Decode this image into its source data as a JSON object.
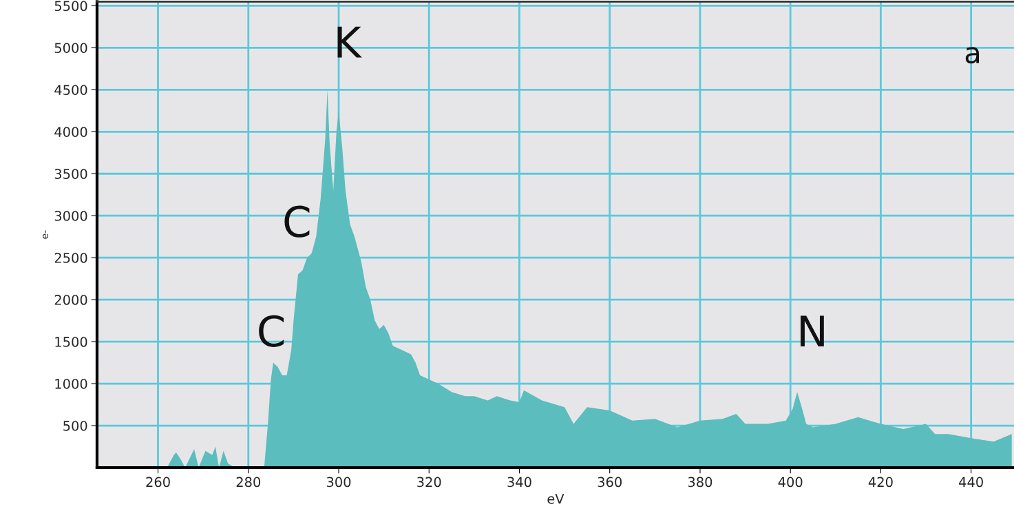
{
  "chart_data": {
    "type": "area",
    "xlabel": "eV",
    "ylabel": "e-",
    "x": [
      262,
      263.5,
      264,
      265,
      266,
      268,
      269,
      270.5,
      272,
      272.7,
      273.5,
      274.5,
      275.5,
      277,
      283.5,
      284.3,
      285,
      285.5,
      286.5,
      287.5,
      288.5,
      289.5,
      290,
      291,
      292,
      293,
      294,
      295,
      296,
      297,
      297.5,
      298,
      298.8,
      299.5,
      300,
      300.8,
      301.5,
      302.5,
      303.5,
      305,
      306,
      307,
      308,
      309,
      310,
      311,
      312,
      314,
      316,
      317,
      318,
      320,
      322,
      325,
      328,
      330,
      333,
      335,
      338,
      340,
      341,
      345,
      350,
      352,
      355,
      360,
      365,
      370,
      375,
      380,
      385,
      388,
      390,
      395,
      399,
      400.5,
      401.5,
      402.5,
      403.5,
      405,
      410,
      415,
      420,
      425,
      430,
      432,
      435,
      440,
      445,
      449
    ],
    "series": [
      {
        "color": "#5bbdbd",
        "values": [
          0,
          150,
          180,
          100,
          0,
          220,
          0,
          200,
          150,
          250,
          0,
          200,
          50,
          0,
          0,
          500,
          1050,
          1250,
          1200,
          1100,
          1100,
          1400,
          1750,
          2300,
          2350,
          2500,
          2550,
          2750,
          3200,
          3900,
          4500,
          3850,
          3300,
          4000,
          4250,
          3800,
          3300,
          2900,
          2750,
          2450,
          2150,
          2000,
          1750,
          1650,
          1700,
          1600,
          1450,
          1400,
          1350,
          1250,
          1100,
          1050,
          1000,
          900,
          850,
          850,
          800,
          850,
          800,
          780,
          920,
          800,
          720,
          520,
          720,
          680,
          560,
          580,
          480,
          560,
          580,
          640,
          520,
          520,
          560,
          700,
          900,
          720,
          520,
          480,
          520,
          600,
          520,
          460,
          520,
          400,
          400,
          350,
          310,
          400
        ]
      }
    ],
    "xlim": [
      246.5,
      449.5
    ],
    "ylim": [
      0,
      5550
    ],
    "xticks": [
      260,
      280,
      300,
      320,
      340,
      360,
      380,
      400,
      420,
      440
    ],
    "yticks": [
      500,
      1000,
      1500,
      2000,
      2500,
      3000,
      3500,
      4000,
      4500,
      5000,
      5500
    ],
    "grid": true,
    "annotations": [
      "K",
      "C",
      "C",
      "N",
      "a"
    ]
  }
}
